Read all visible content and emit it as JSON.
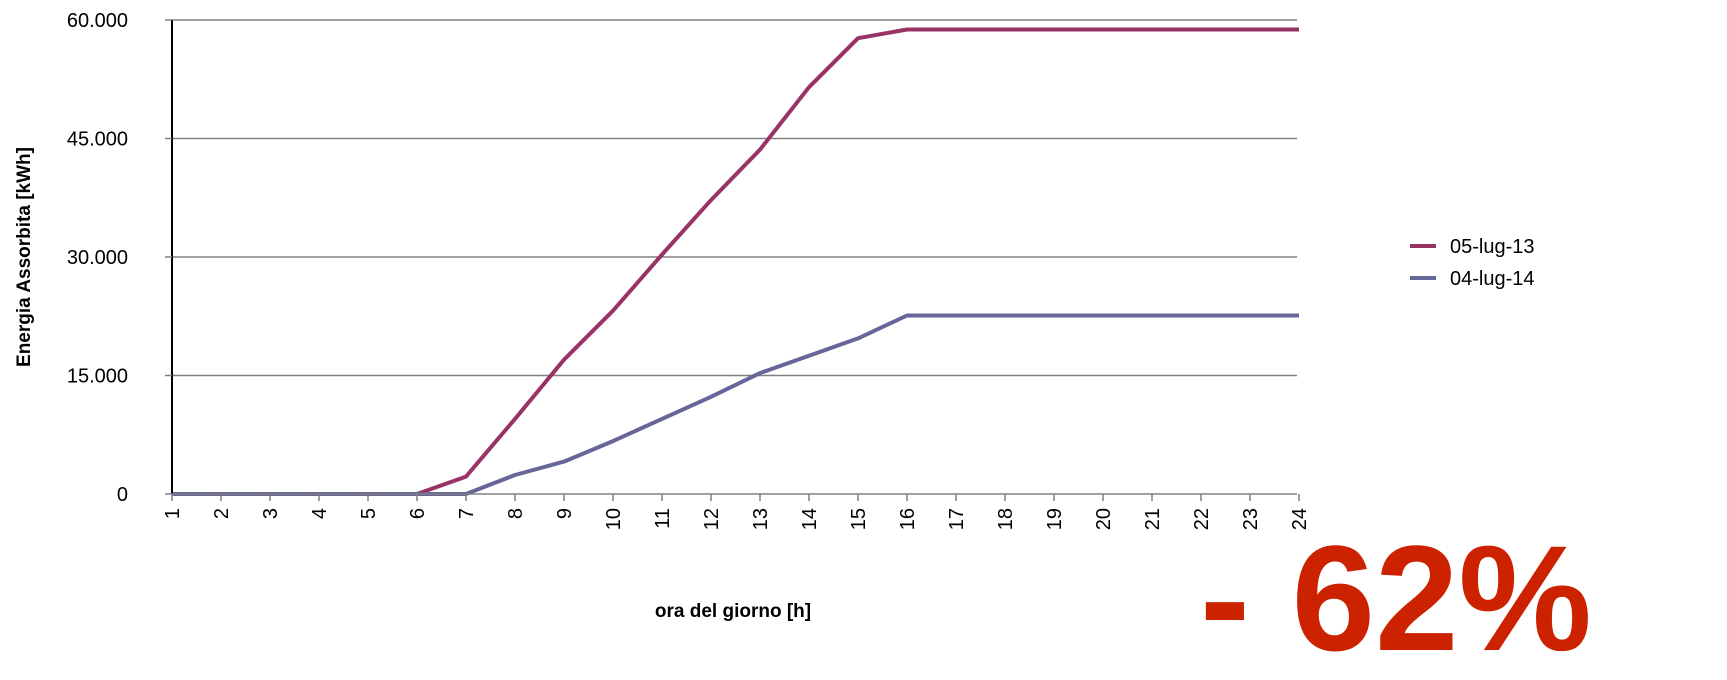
{
  "chart_data": {
    "type": "line",
    "title": "",
    "xlabel": "ora del giorno [h]",
    "ylabel": "Energia Assorbita [kWh]",
    "categories": [
      "1",
      "2",
      "3",
      "4",
      "5",
      "6",
      "7",
      "8",
      "9",
      "10",
      "11",
      "12",
      "13",
      "14",
      "15",
      "16",
      "17",
      "18",
      "19",
      "20",
      "21",
      "22",
      "23",
      "24"
    ],
    "ylim": [
      0,
      60000
    ],
    "yticks": [
      0,
      15000,
      30000,
      45000,
      60000
    ],
    "ytick_labels": [
      "0",
      "15.000",
      "30.000",
      "45.000",
      "60.000"
    ],
    "grid": "horizontal",
    "legend_position": "right",
    "series": [
      {
        "name": "05-lug-13",
        "color": "#993366",
        "values": [
          0,
          0,
          0,
          0,
          0,
          0,
          2200,
          9500,
          17000,
          23200,
          30300,
          37200,
          43600,
          51500,
          57700,
          58800,
          58800,
          58800,
          58800,
          58800,
          58800,
          58800,
          58800,
          58800
        ]
      },
      {
        "name": "04-lug-14",
        "color": "#666699",
        "values": [
          0,
          0,
          0,
          0,
          0,
          0,
          0,
          2400,
          4100,
          6700,
          9500,
          12300,
          15300,
          17500,
          19700,
          22600,
          22600,
          22600,
          22600,
          22600,
          22600,
          22600,
          22600,
          22600
        ]
      }
    ],
    "annotation": "- 62%",
    "annotation_color": "#cc2200"
  }
}
